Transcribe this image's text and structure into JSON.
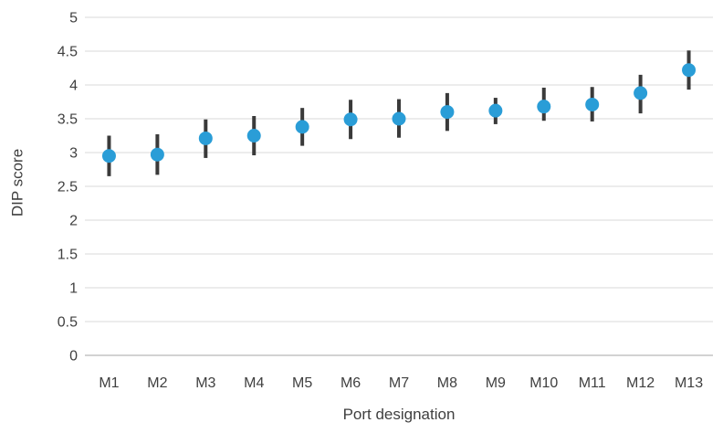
{
  "chart_data": {
    "type": "scatter",
    "title": "",
    "xlabel": "Port designation",
    "ylabel": "DIP score",
    "categories": [
      "M1",
      "M2",
      "M3",
      "M4",
      "M5",
      "M6",
      "M7",
      "M8",
      "M9",
      "M10",
      "M11",
      "M12",
      "M13"
    ],
    "series": [
      {
        "name": "DIP score",
        "values": [
          2.95,
          2.97,
          3.21,
          3.25,
          3.38,
          3.49,
          3.5,
          3.6,
          3.62,
          3.68,
          3.71,
          3.88,
          4.22
        ],
        "error_low": [
          2.65,
          2.67,
          2.92,
          2.96,
          3.1,
          3.2,
          3.22,
          3.32,
          3.42,
          3.47,
          3.46,
          3.58,
          3.93
        ],
        "error_high": [
          3.25,
          3.27,
          3.49,
          3.54,
          3.66,
          3.78,
          3.79,
          3.88,
          3.81,
          3.96,
          3.97,
          4.15,
          4.51
        ]
      }
    ],
    "ylim": [
      0,
      5
    ],
    "ytick_step": 0.5,
    "yticks": [
      "0",
      "0.5",
      "1",
      "1.5",
      "2",
      "2.5",
      "3",
      "3.5",
      "4",
      "4.5",
      "5"
    ],
    "grid": "horizontal",
    "legend": "none",
    "marker": "circle-with-error-bars",
    "colors": {
      "marker": "#2A9DD7",
      "error_bar": "#3a3a3a",
      "gridline": "#d9d9d9",
      "axis_line": "#a6a6a6",
      "text": "#404040",
      "background": "#ffffff"
    }
  }
}
